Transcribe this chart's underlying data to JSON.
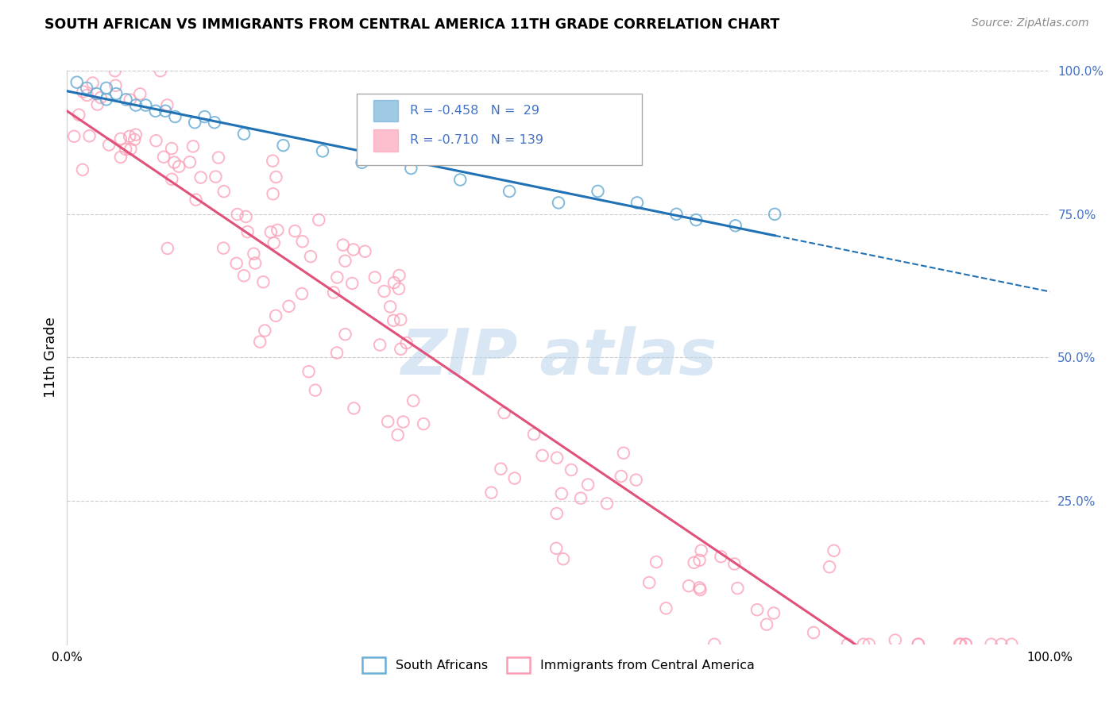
{
  "title": "SOUTH AFRICAN VS IMMIGRANTS FROM CENTRAL AMERICA 11TH GRADE CORRELATION CHART",
  "source": "Source: ZipAtlas.com",
  "ylabel": "11th Grade",
  "blue_color": "#6baed6",
  "pink_color": "#fc9cb4",
  "blue_line_color": "#2171b5",
  "pink_line_color": "#e0527a",
  "grid_color": "#cccccc",
  "legend_blue_r_val": "-0.458",
  "legend_blue_n_val": "29",
  "legend_pink_r_val": "-0.710",
  "legend_pink_n_val": "139",
  "background_color": "#ffffff",
  "watermark_color": "#b8d4ea",
  "right_tick_color": "#4472c4"
}
